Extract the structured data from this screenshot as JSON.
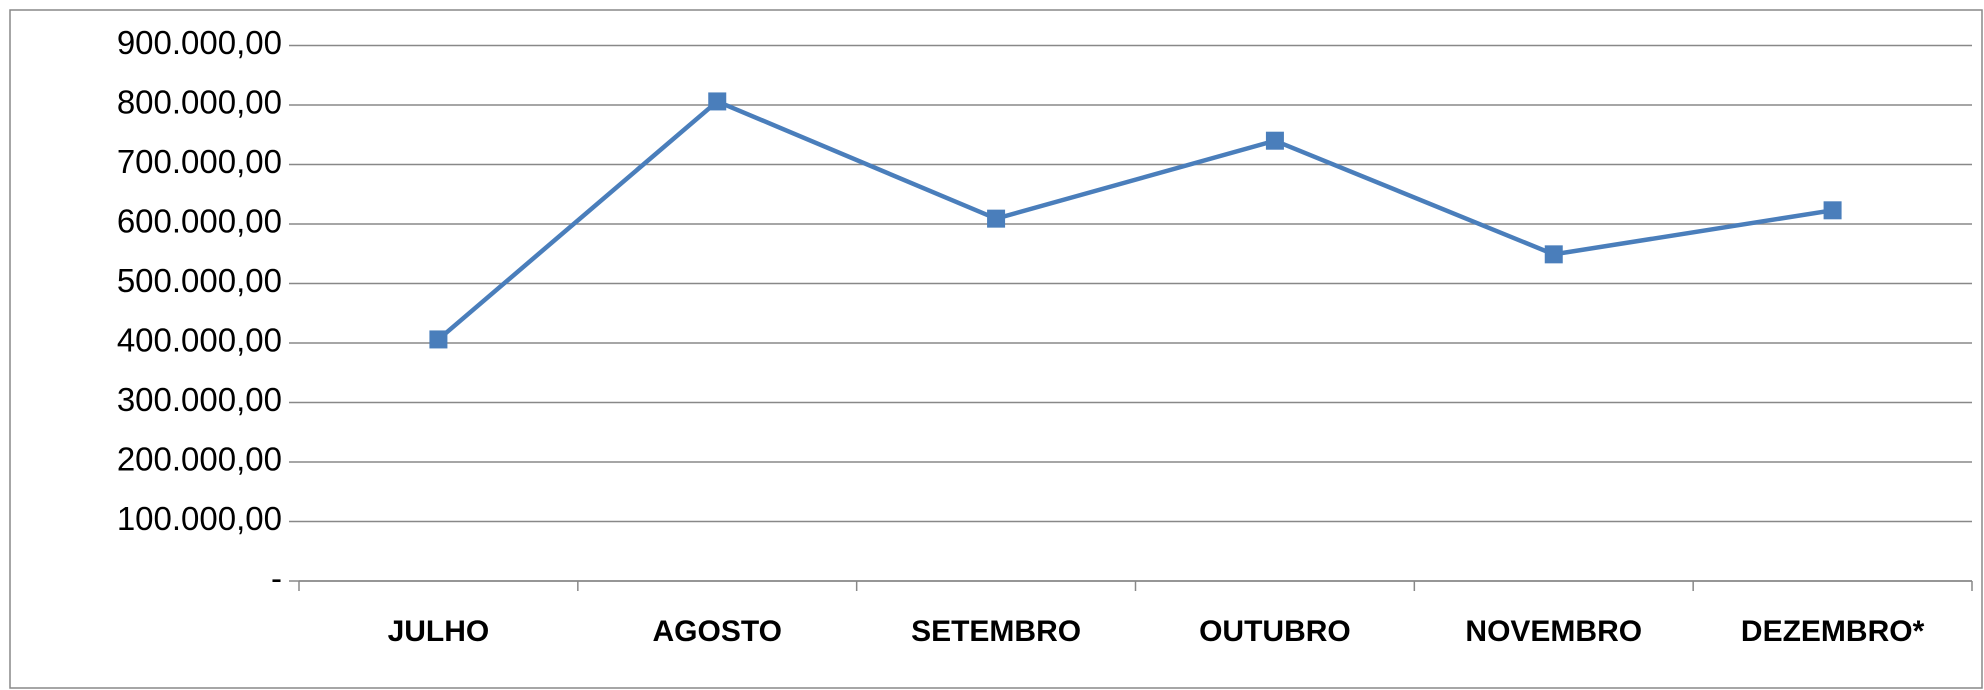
{
  "chart_data": {
    "type": "line",
    "categories": [
      "JULHO",
      "AGOSTO",
      "SETEMBRO",
      "OUTUBRO",
      "NOVEMBRO",
      "DEZEMBRO*"
    ],
    "series": [
      {
        "name": "",
        "color": "#4a7ebb",
        "values": [
          406000,
          806000,
          609000,
          740000,
          549000,
          623000
        ]
      }
    ],
    "ylim": [
      0,
      900000
    ],
    "yticks": [
      {
        "value": 0,
        "label": "-"
      },
      {
        "value": 100000,
        "label": "100.000,00"
      },
      {
        "value": 200000,
        "label": "200.000,00"
      },
      {
        "value": 300000,
        "label": "300.000,00"
      },
      {
        "value": 400000,
        "label": "400.000,00"
      },
      {
        "value": 500000,
        "label": "500.000,00"
      },
      {
        "value": 600000,
        "label": "600.000,00"
      },
      {
        "value": 700000,
        "label": "700.000,00"
      },
      {
        "value": 800000,
        "label": "800.000,00"
      },
      {
        "value": 900000,
        "label": "900.000,00"
      }
    ],
    "grid": true
  }
}
